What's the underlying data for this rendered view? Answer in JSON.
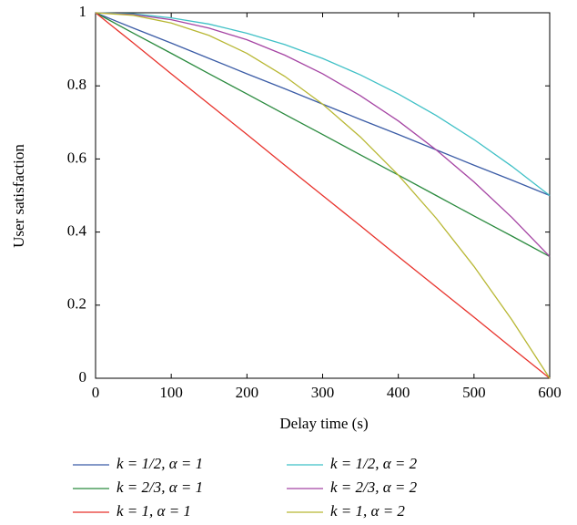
{
  "chart_data": {
    "type": "line",
    "x_label": "Delay time (s)",
    "y_label": "User satisfaction",
    "x": [
      0,
      50,
      100,
      150,
      200,
      250,
      300,
      350,
      400,
      450,
      500,
      550,
      600
    ],
    "series": [
      {
        "name": "k = 1/2, α = 1",
        "color": "#3b5ca6",
        "values": [
          1,
          0.958,
          0.917,
          0.875,
          0.833,
          0.792,
          0.75,
          0.708,
          0.667,
          0.625,
          0.583,
          0.542,
          0.5
        ]
      },
      {
        "name": "k = 2/3, α = 1",
        "color": "#2a8a3e",
        "values": [
          1,
          0.944,
          0.889,
          0.833,
          0.778,
          0.722,
          0.667,
          0.611,
          0.556,
          0.5,
          0.444,
          0.389,
          0.333
        ]
      },
      {
        "name": "k = 1, α = 1",
        "color": "#e8322b",
        "values": [
          1,
          0.917,
          0.833,
          0.75,
          0.667,
          0.583,
          0.5,
          0.417,
          0.333,
          0.25,
          0.167,
          0.083,
          0
        ]
      },
      {
        "name": "k = 1/2, α = 2",
        "color": "#3fc0c6",
        "values": [
          1,
          0.997,
          0.986,
          0.969,
          0.944,
          0.913,
          0.875,
          0.83,
          0.778,
          0.719,
          0.653,
          0.58,
          0.5
        ]
      },
      {
        "name": "k = 2/3, α = 2",
        "color": "#a544a3",
        "values": [
          1,
          0.995,
          0.981,
          0.958,
          0.926,
          0.884,
          0.833,
          0.773,
          0.704,
          0.625,
          0.537,
          0.44,
          0.333
        ]
      },
      {
        "name": "k = 1, α = 2",
        "color": "#b8b733",
        "values": [
          1,
          0.993,
          0.972,
          0.938,
          0.889,
          0.826,
          0.75,
          0.66,
          0.556,
          0.438,
          0.306,
          0.16,
          0
        ]
      }
    ],
    "xlim": [
      0,
      600
    ],
    "xticks": [
      0,
      100,
      200,
      300,
      400,
      500,
      600
    ],
    "ylim": [
      0,
      1
    ],
    "yticks": [
      0,
      0.2,
      0.4,
      0.6,
      0.8,
      1
    ],
    "grid": false,
    "legend": "bottom"
  }
}
